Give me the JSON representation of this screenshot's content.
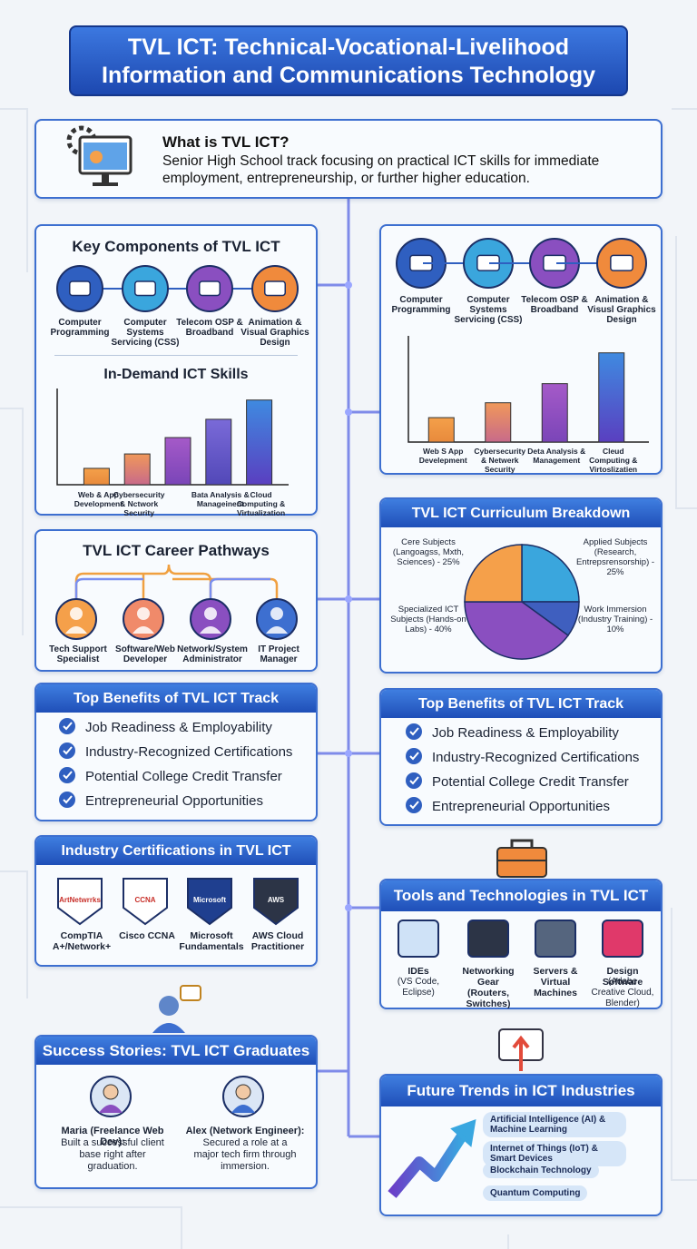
{
  "header": {
    "title_lines": [
      "TVL ICT: Technical-Vocational-Livelihood",
      "Information and Communications Technology"
    ]
  },
  "intro": {
    "heading": "What is TVL ICT?",
    "text": "Senior High School track focusing on practical ICT skills for immediate employment, entrepreneurship, or further higher education."
  },
  "key_components": {
    "title": "Key Components of TVL ICT",
    "items": [
      "Computer Programming",
      "Computer Systems Servicing (CSS)",
      "Telecom OSP & Broadband",
      "Animation & Visual Graphics Design"
    ]
  },
  "skills_panel": {
    "items": [
      "Computer Programming",
      "Computer Systems Servicing (CSS)",
      "Telecom OSP & Broadband",
      "Animation & Visusl Graphics Design"
    ]
  },
  "chart_data": [
    {
      "type": "bar",
      "title": "In-Demand ICT Skills",
      "categories": [
        "Web & App Development",
        "Cybersecurity & Nctwork Security",
        null,
        "Bata Analysis & Manageinent",
        "Cloud Computing & Virtualization"
      ],
      "values": [
        17,
        32,
        49,
        68,
        88
      ],
      "ylim": [
        0,
        100
      ]
    },
    {
      "type": "bar",
      "categories": [
        "Web S App Develepment",
        "Cybersecurity & Netwerk Security",
        "Deta Analysis & Management",
        "Cleud Computing & Virtoslizatien"
      ],
      "values": [
        23,
        37,
        55,
        84
      ],
      "ylim": [
        0,
        100
      ]
    },
    {
      "type": "pie",
      "title": "TVL ICT Curriculum Breakdown",
      "categories": [
        "Applied Subjects (Research, Entrepsrensorship) - 25%",
        "Work Immersion (Industry Training) - 10%",
        "Specialized ICT Subjects (Hands-on Labs) - 40%",
        "Cere Subjects (Langoagss, Mxth, Sciences) - 25%"
      ],
      "values": [
        25,
        10,
        40,
        25
      ],
      "colors": [
        "#3aa6dd",
        "#3f5fbf",
        "#8a4fc0",
        "#f5a04a"
      ]
    }
  ],
  "career": {
    "title": "TVL ICT Career Pathways",
    "items": [
      "Tech Support Specialist",
      "Software/Web Developer",
      "Network/System Administrator",
      "IT Project Manager"
    ]
  },
  "benefits_left": {
    "title": "Top Benefits of TVL ICT Track",
    "items": [
      "Job Readiness & Employability",
      "Industry-Recognized Certifications",
      "Potential College Credit Transfer",
      "Entrepreneurial Opportunities"
    ]
  },
  "benefits_right": {
    "title": "Top Benefits of TVL ICT Track",
    "items": [
      "Job Readiness & Employability",
      "Industry-Recognized Certifications",
      "Potential College Credit Transfer",
      "Entrepreneurial Opportunities"
    ]
  },
  "certifications": {
    "title": "Industry Certifications in TVL ICT",
    "items": [
      {
        "badge": "ArtNetwrrks",
        "label": "CompTIA A+/Network+"
      },
      {
        "badge": "CCNA",
        "label": "Cisco CCNA"
      },
      {
        "badge": "Microsoft",
        "label": "Microsoft Fundamentals"
      },
      {
        "badge": "AWS",
        "label": "AWS Cloud Practitioner"
      }
    ]
  },
  "tools": {
    "title": "Tools and Technologies in TVL ICT",
    "items": [
      {
        "name": "IDEs",
        "detail": "(VS Code, Eclipse)"
      },
      {
        "name": "Networking Gear (Routers, Switches)",
        "detail": ""
      },
      {
        "name": "Servers & Virtual Machines",
        "detail": ""
      },
      {
        "name": "Design Software",
        "detail": "(Adobe Creative Cloud, Blender)"
      }
    ]
  },
  "success": {
    "title": "Success Stories: TVL ICT Graduates",
    "stories": [
      {
        "name": "Maria (Freelance Web Dev):",
        "text": "Built a successful client base right after graduation."
      },
      {
        "name": "Alex (Network Engineer):",
        "text": "Secured a role at a major tech firm through immersion."
      }
    ]
  },
  "future": {
    "title": "Future Trends in ICT Industries",
    "items": [
      "Artificial Intelligence (AI) & Machine Learning",
      "Internet of Things (IoT) & Smart Devices",
      "Blockchain Technology",
      "Quantum Computing"
    ]
  }
}
